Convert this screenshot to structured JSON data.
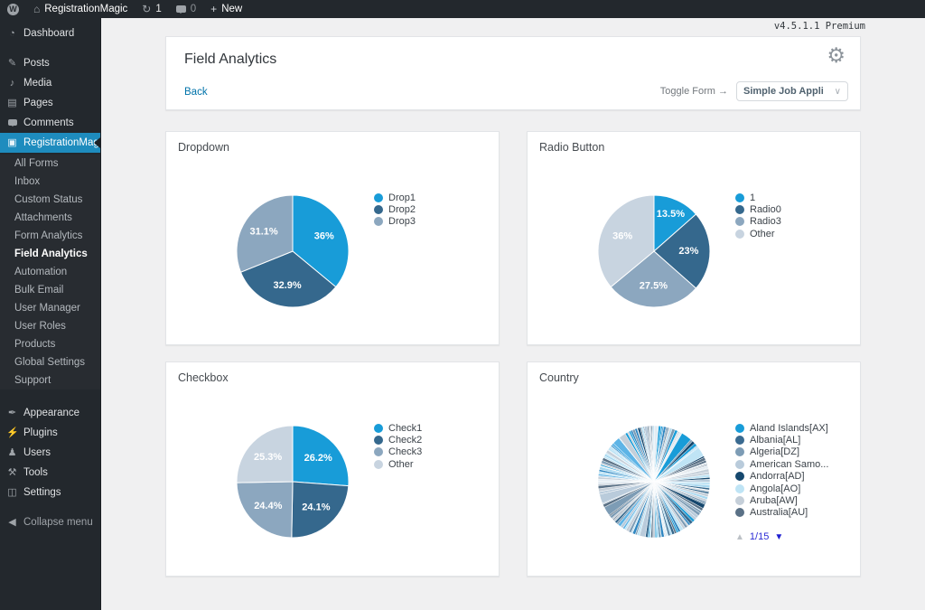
{
  "admin_bar": {
    "wp_logo_letter": "W",
    "site_name": "RegistrationMagic",
    "update_count": "1",
    "comment_count": "0",
    "new_label": "New",
    "icons": [
      "wordpress-logo",
      "home-icon",
      "update-icon",
      "comment-icon",
      "plus-icon"
    ]
  },
  "sidebar": {
    "items": [
      {
        "label": "Dashboard",
        "icon": "dashboard-icon"
      },
      {
        "label": "Posts",
        "icon": "posts-icon",
        "separator_before": true
      },
      {
        "label": "Media",
        "icon": "media-icon"
      },
      {
        "label": "Pages",
        "icon": "pages-icon"
      },
      {
        "label": "Comments",
        "icon": "comments-icon"
      },
      {
        "label": "RegistrationMagic",
        "icon": "registrationmagic-icon",
        "active": true,
        "submenu": [
          {
            "label": "All Forms"
          },
          {
            "label": "Inbox"
          },
          {
            "label": "Custom Status"
          },
          {
            "label": "Attachments"
          },
          {
            "label": "Form Analytics"
          },
          {
            "label": "Field Analytics",
            "active": true
          },
          {
            "label": "Automation"
          },
          {
            "label": "Bulk Email"
          },
          {
            "label": "User Manager"
          },
          {
            "label": "User Roles"
          },
          {
            "label": "Products"
          },
          {
            "label": "Global Settings"
          },
          {
            "label": "Support"
          }
        ]
      },
      {
        "label": "Appearance",
        "icon": "appearance-icon",
        "separator_before": true
      },
      {
        "label": "Plugins",
        "icon": "plugins-icon"
      },
      {
        "label": "Users",
        "icon": "users-icon"
      },
      {
        "label": "Tools",
        "icon": "tools-icon"
      },
      {
        "label": "Settings",
        "icon": "settings-icon"
      },
      {
        "label": "Collapse menu",
        "icon": "collapse-icon",
        "separator_before": true,
        "muted": true
      }
    ]
  },
  "page": {
    "version": "v4.5.1.1 Premium",
    "header": {
      "title": "Field Analytics",
      "gear_icon": "gear-icon",
      "back_label": "Back",
      "toggle_form_label": "Toggle Form →",
      "form_select_value": "Simple Job Appli"
    },
    "colors": {
      "accent_blue": "#1e8cbe",
      "link_blue": "#0073aa",
      "admin_dark": "#23282d",
      "content_bg": "#f0f0f1"
    }
  },
  "chart_data": [
    {
      "type": "pie",
      "title": "Dropdown",
      "labels": [
        "Drop1",
        "Drop2",
        "Drop3"
      ],
      "values": [
        36,
        32.9,
        31.1
      ],
      "value_labels": [
        "36%",
        "32.9%",
        "31.1%"
      ],
      "colors": [
        "#189cd8",
        "#35688d",
        "#8ca7bf"
      ],
      "legend_position": "right",
      "start_angle": "top-clockwise"
    },
    {
      "type": "pie",
      "title": "Radio Button",
      "labels": [
        "1",
        "Radio0",
        "Radio3",
        "Other"
      ],
      "values": [
        13.5,
        23,
        27.5,
        36
      ],
      "value_labels": [
        "13.5%",
        "23%",
        "27.5%",
        "36%"
      ],
      "colors": [
        "#189cd8",
        "#35688d",
        "#8ca7bf",
        "#c8d4e0"
      ],
      "legend_position": "right",
      "start_angle": "top-clockwise"
    },
    {
      "type": "pie",
      "title": "Checkbox",
      "labels": [
        "Check1",
        "Check2",
        "Check3",
        "Other"
      ],
      "values": [
        26.2,
        24.1,
        24.4,
        25.3
      ],
      "value_labels": [
        "26.2%",
        "24.1%",
        "24.4%",
        "25.3%"
      ],
      "colors": [
        "#189cd8",
        "#35688d",
        "#8ca7bf",
        "#c8d4e0"
      ],
      "legend_position": "right",
      "start_angle": "top-clockwise"
    },
    {
      "type": "pie",
      "title": "Country",
      "style": "many-thin-slices",
      "approx_slice_count": 150,
      "legend_labels": [
        "Aland Islands[AX]",
        "Albania[AL]",
        "Algeria[DZ]",
        "American Samo...",
        "Andorra[AD]",
        "Angola[AO]",
        "Aruba[AW]",
        "Australia[AU]"
      ],
      "legend_colors": [
        "#189cd8",
        "#3a6a90",
        "#7d9cb5",
        "#b9cbdb",
        "#16486e",
        "#bfe4f5",
        "#c5cfd9",
        "#5a7186"
      ],
      "palette": [
        "#189cd8",
        "#5db4e6",
        "#a8d8f0",
        "#bfe4f5",
        "#16486e",
        "#35688d",
        "#7d9cb5",
        "#b9cbdb",
        "#c5cfd9",
        "#5a7186",
        "#e3ecf3",
        "#2e86c1"
      ],
      "legend_position": "right",
      "pagination": {
        "current": "1/15",
        "up_disabled": true
      }
    }
  ]
}
